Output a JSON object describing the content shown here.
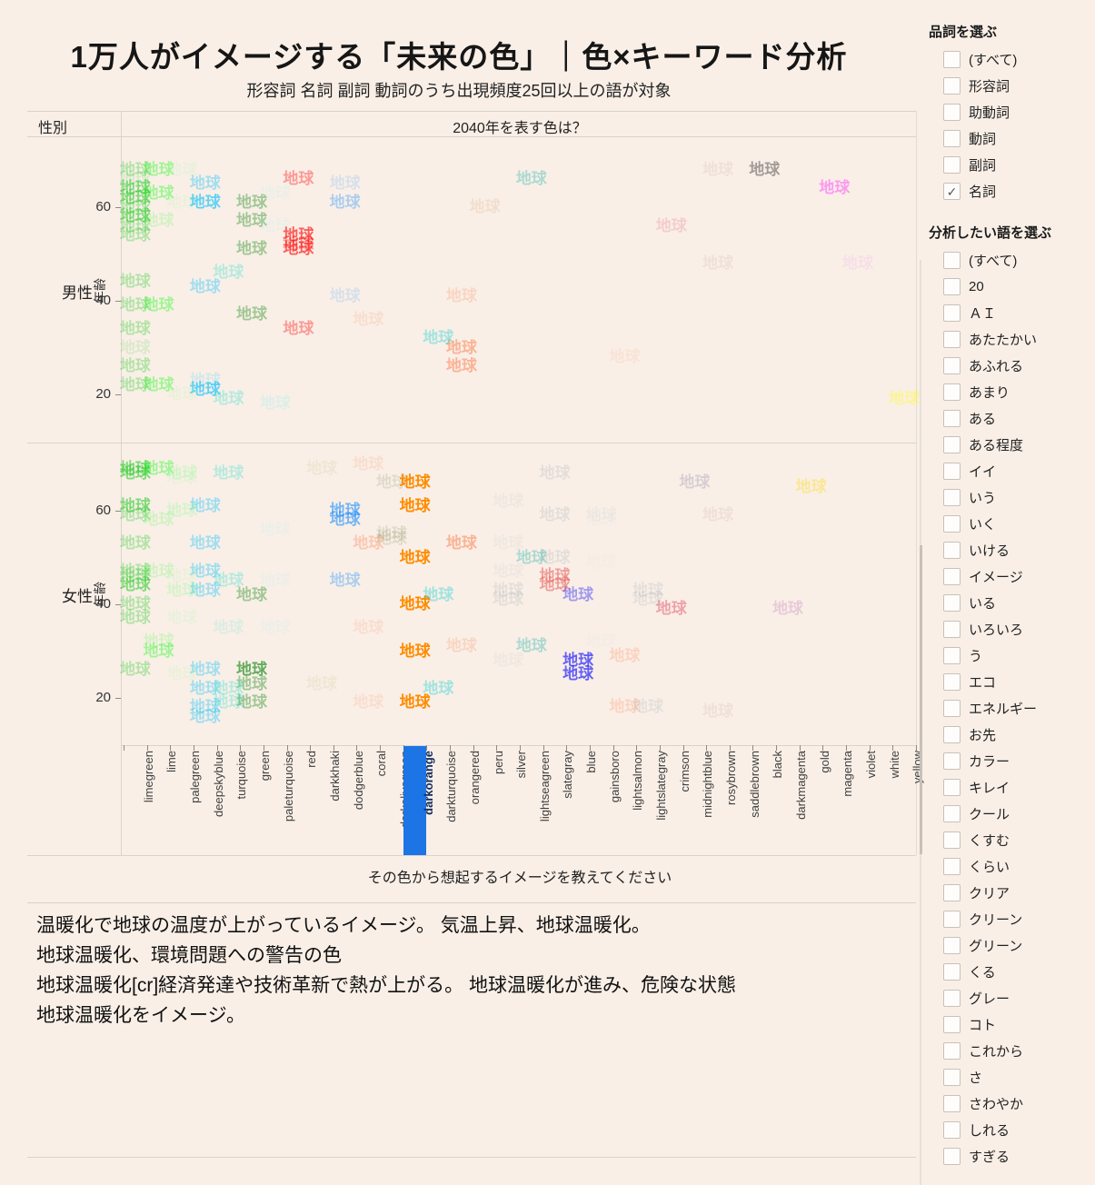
{
  "title": "1万人がイメージする「未来の色」｜色×キーワード分析",
  "subtitle": "形容詞 名詞 副詞 動詞のうち出現頻度25回以上の語が対象",
  "chart_data": {
    "type": "scatter",
    "mark_text": "地球",
    "row_dimension": "性別",
    "column_header": "2040年を表す色は？",
    "x_axis_title": "その色から想起するイメージを教えてください",
    "y_axis_label": "年齢",
    "y_ticks": [
      60,
      40,
      20
    ],
    "ylim": [
      14,
      74
    ],
    "grid": false,
    "legend": "none",
    "panels": [
      {
        "label": "男性"
      },
      {
        "label": "女性"
      }
    ],
    "selected_category": "darkorange",
    "x_categories": [
      "limegreen",
      "lime",
      "palegreen",
      "deepskyblue",
      "turquoise",
      "green",
      "paleturquoise",
      "red",
      "darkkhaki",
      "dodgerblue",
      "coral",
      "darkolivegreen",
      "darkorange",
      "darkturquoise",
      "orangered",
      "peru",
      "silver",
      "lightseagreen",
      "slategray",
      "blue",
      "gainsboro",
      "lightsalmon",
      "lightslategray",
      "crimson",
      "midnightblue",
      "rosybrown",
      "saddlebrown",
      "black",
      "darkmagenta",
      "gold",
      "magenta",
      "violet",
      "white",
      "yellow"
    ],
    "marks_note": "each mark = [panel(0=male,1=female), category_index, age, opacity_tier(1 faint..4 selected), optional_color_override]",
    "marks": [
      [
        0,
        0,
        68,
        2
      ],
      [
        0,
        1,
        68,
        2
      ],
      [
        0,
        2,
        68,
        1
      ],
      [
        0,
        0,
        66,
        1
      ],
      [
        0,
        0,
        64,
        3
      ],
      [
        0,
        1,
        63,
        2
      ],
      [
        0,
        0,
        62,
        3
      ],
      [
        0,
        0,
        60,
        2
      ],
      [
        0,
        0,
        58,
        3
      ],
      [
        0,
        1,
        57,
        1
      ],
      [
        0,
        0,
        56,
        2
      ],
      [
        0,
        0,
        54,
        2
      ],
      [
        0,
        2,
        61,
        1
      ],
      [
        0,
        3,
        65,
        2
      ],
      [
        0,
        3,
        61,
        3
      ],
      [
        0,
        5,
        61,
        2
      ],
      [
        0,
        7,
        66,
        2
      ],
      [
        0,
        6,
        63,
        1
      ],
      [
        0,
        9,
        65,
        1
      ],
      [
        0,
        9,
        61,
        2
      ],
      [
        0,
        5,
        57,
        2
      ],
      [
        0,
        6,
        56,
        1
      ],
      [
        0,
        7,
        54,
        3
      ],
      [
        0,
        7,
        52,
        2
      ],
      [
        0,
        7,
        51,
        3
      ],
      [
        0,
        5,
        51,
        2
      ],
      [
        0,
        15,
        60,
        1
      ],
      [
        0,
        17,
        66,
        2
      ],
      [
        0,
        25,
        68,
        1
      ],
      [
        0,
        27,
        68,
        2
      ],
      [
        0,
        30,
        64,
        2
      ],
      [
        0,
        23,
        56,
        1
      ],
      [
        0,
        25,
        48,
        1
      ],
      [
        0,
        31,
        48,
        1
      ],
      [
        0,
        4,
        46,
        2
      ],
      [
        0,
        0,
        44,
        2
      ],
      [
        0,
        3,
        43,
        2
      ],
      [
        0,
        0,
        39,
        2
      ],
      [
        0,
        1,
        39,
        2
      ],
      [
        0,
        5,
        37,
        2
      ],
      [
        0,
        9,
        41,
        1
      ],
      [
        0,
        14,
        41,
        1
      ],
      [
        0,
        0,
        34,
        2
      ],
      [
        0,
        7,
        34,
        2
      ],
      [
        0,
        10,
        36,
        1
      ],
      [
        0,
        0,
        30,
        1
      ],
      [
        0,
        13,
        32,
        2
      ],
      [
        0,
        14,
        30,
        2
      ],
      [
        0,
        14,
        26,
        2
      ],
      [
        0,
        21,
        28,
        1
      ],
      [
        0,
        0,
        26,
        2
      ],
      [
        0,
        0,
        22,
        2
      ],
      [
        0,
        1,
        22,
        2
      ],
      [
        0,
        3,
        23,
        1
      ],
      [
        0,
        3,
        21,
        3
      ],
      [
        0,
        4,
        19,
        2
      ],
      [
        0,
        6,
        18,
        2
      ],
      [
        0,
        2,
        20,
        1
      ],
      [
        0,
        33,
        19,
        2
      ],
      [
        1,
        0,
        69,
        3
      ],
      [
        1,
        0,
        68,
        3
      ],
      [
        1,
        1,
        69,
        2
      ],
      [
        1,
        2,
        68,
        2
      ],
      [
        1,
        2,
        67,
        1
      ],
      [
        1,
        4,
        68,
        2
      ],
      [
        1,
        8,
        69,
        1
      ],
      [
        1,
        10,
        70,
        1
      ],
      [
        1,
        11,
        66,
        1
      ],
      [
        1,
        18,
        68,
        1
      ],
      [
        1,
        24,
        66,
        1
      ],
      [
        1,
        0,
        61,
        3
      ],
      [
        1,
        0,
        59,
        2
      ],
      [
        1,
        1,
        58,
        1
      ],
      [
        1,
        2,
        60,
        2
      ],
      [
        1,
        3,
        61,
        2
      ],
      [
        1,
        9,
        60,
        3
      ],
      [
        1,
        9,
        58,
        3
      ],
      [
        1,
        16,
        62,
        1
      ],
      [
        1,
        18,
        59,
        1
      ],
      [
        1,
        20,
        59,
        2
      ],
      [
        1,
        20,
        58,
        1
      ],
      [
        1,
        25,
        59,
        1
      ],
      [
        1,
        29,
        65,
        2
      ],
      [
        1,
        0,
        53,
        2
      ],
      [
        1,
        3,
        53,
        2
      ],
      [
        1,
        6,
        56,
        1
      ],
      [
        1,
        10,
        53,
        2
      ],
      [
        1,
        11,
        55,
        1
      ],
      [
        1,
        11,
        54,
        1
      ],
      [
        1,
        14,
        53,
        2
      ],
      [
        1,
        16,
        53,
        1
      ],
      [
        1,
        17,
        50,
        2
      ],
      [
        1,
        18,
        50,
        1
      ],
      [
        1,
        20,
        49,
        1
      ],
      [
        1,
        12,
        66,
        4
      ],
      [
        1,
        12,
        61,
        4
      ],
      [
        1,
        12,
        50,
        4
      ],
      [
        1,
        12,
        40,
        4
      ],
      [
        1,
        12,
        30,
        4
      ],
      [
        1,
        12,
        19,
        4
      ],
      [
        1,
        0,
        47,
        2
      ],
      [
        1,
        0,
        46,
        2
      ],
      [
        1,
        1,
        47,
        1
      ],
      [
        1,
        2,
        46,
        1
      ],
      [
        1,
        3,
        47,
        2
      ],
      [
        1,
        4,
        45,
        2
      ],
      [
        1,
        6,
        45,
        1
      ],
      [
        1,
        9,
        45,
        2
      ],
      [
        1,
        16,
        47,
        1
      ],
      [
        1,
        0,
        44,
        3
      ],
      [
        1,
        2,
        43,
        2
      ],
      [
        1,
        3,
        43,
        2
      ],
      [
        1,
        5,
        42,
        2
      ],
      [
        1,
        13,
        42,
        2
      ],
      [
        1,
        16,
        43,
        2
      ],
      [
        1,
        16,
        41,
        2
      ],
      [
        1,
        18,
        46,
        3,
        "#ea6a66"
      ],
      [
        1,
        18,
        44,
        3,
        "#ea6a66"
      ],
      [
        1,
        19,
        42,
        2
      ],
      [
        1,
        22,
        43,
        1
      ],
      [
        1,
        22,
        41,
        1
      ],
      [
        1,
        23,
        39,
        2
      ],
      [
        1,
        28,
        39,
        1
      ],
      [
        1,
        0,
        40,
        2
      ],
      [
        1,
        0,
        37,
        2
      ],
      [
        1,
        2,
        37,
        1
      ],
      [
        1,
        4,
        35,
        1
      ],
      [
        1,
        6,
        35,
        1
      ],
      [
        1,
        10,
        35,
        1
      ],
      [
        1,
        1,
        32,
        1
      ],
      [
        1,
        1,
        30,
        2
      ],
      [
        1,
        14,
        31,
        1
      ],
      [
        1,
        17,
        31,
        2
      ],
      [
        1,
        16,
        28,
        1
      ],
      [
        1,
        21,
        29,
        2
      ],
      [
        1,
        20,
        32,
        1
      ],
      [
        1,
        0,
        26,
        2
      ],
      [
        1,
        2,
        25,
        1
      ],
      [
        1,
        3,
        26,
        2
      ],
      [
        1,
        5,
        26,
        3
      ],
      [
        1,
        5,
        23,
        2
      ],
      [
        1,
        8,
        23,
        1
      ],
      [
        1,
        13,
        22,
        2
      ],
      [
        1,
        19,
        28,
        3
      ],
      [
        1,
        19,
        25,
        3
      ],
      [
        1,
        3,
        22,
        2
      ],
      [
        1,
        4,
        22,
        2
      ],
      [
        1,
        4,
        19,
        2
      ],
      [
        1,
        3,
        18,
        2
      ],
      [
        1,
        3,
        16,
        2
      ],
      [
        1,
        5,
        19,
        2
      ],
      [
        1,
        10,
        19,
        1
      ],
      [
        1,
        21,
        18,
        2
      ],
      [
        1,
        22,
        18,
        1
      ],
      [
        1,
        25,
        17,
        1
      ]
    ]
  },
  "filters": {
    "pos_title": "品詞を選ぶ",
    "pos_items": [
      {
        "label": "(すべて)",
        "checked": false
      },
      {
        "label": "形容詞",
        "checked": false
      },
      {
        "label": "助動詞",
        "checked": false
      },
      {
        "label": "動詞",
        "checked": false
      },
      {
        "label": "副詞",
        "checked": false
      },
      {
        "label": "名詞",
        "checked": true
      }
    ],
    "word_title": "分析したい語を選ぶ",
    "word_items": [
      "(すべて)",
      "20",
      "ＡＩ",
      "あたたかい",
      "あふれる",
      "あまり",
      "ある",
      "ある程度",
      "イイ",
      "いう",
      "いく",
      "いける",
      "イメージ",
      "いる",
      "いろいろ",
      "う",
      "エコ",
      "エネルギー",
      "お先",
      "カラー",
      "キレイ",
      "クール",
      "くすむ",
      "くらい",
      "クリア",
      "クリーン",
      "グリーン",
      "くる",
      "グレー",
      "コト",
      "これから",
      "さ",
      "さわやか",
      "しれる",
      "すぎる"
    ]
  },
  "comments": [
    "温暖化で地球の温度が上がっているイメージ。 気温上昇、地球温暖化。",
    "地球温暖化、環境問題への警告の色",
    "地球温暖化[cr]経済発達や技術革新で熱が上がる。 地球温暖化が進み、危険な状態",
    "地球温暖化をイメージ。"
  ],
  "colors": {
    "background": "#f9efe7",
    "highlight_bg": "#1d74e4",
    "highlight_text": "#0f2c5c",
    "check_mark": "✓"
  }
}
